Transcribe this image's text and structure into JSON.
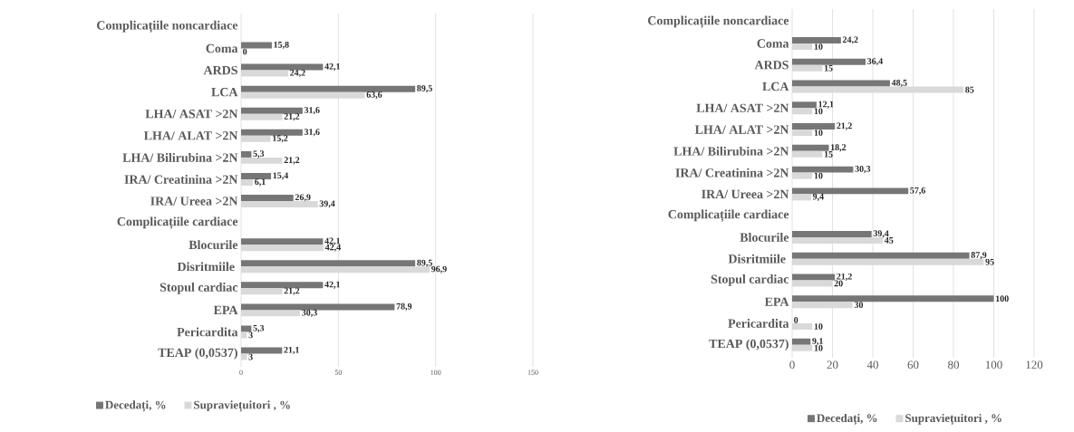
{
  "chart_data": [
    {
      "type": "bar",
      "orientation": "horizontal",
      "categories": [
        "Complicațiile noncardiace",
        "Coma",
        "ARDS",
        "LCA",
        "LHA/ ASAT  >2N",
        "LHA/ ALAT >2N",
        "LHA/ Bilirubina >2N",
        "IRA/ Creatinina >2N",
        "IRA/ Ureea >2N",
        "Complicațiile cardiace",
        "Blocurile",
        "Disritmiile ",
        "Stopul cardiac",
        "EPA",
        "Pericardita",
        "TEAP (0,0537)"
      ],
      "series": [
        {
          "name": "Decedați, %",
          "color": "#767676",
          "values": [
            null,
            15.8,
            42.1,
            89.5,
            31.6,
            31.6,
            5.3,
            15.4,
            26.9,
            null,
            42.1,
            89.5,
            42.1,
            78.9,
            5.3,
            21.1
          ],
          "value_labels": [
            null,
            "15,8",
            "42,1",
            "89,5",
            "31,6",
            "31,6",
            "5,3",
            "15,4",
            "26,9",
            null,
            "42,1",
            "89,5",
            "42,1",
            "78,9",
            "5,3",
            "21,1"
          ]
        },
        {
          "name": "Supraviețuitori , %",
          "color": "#d9d9d9",
          "values": [
            null,
            0,
            24.2,
            63.6,
            21.2,
            15.2,
            21.2,
            6.1,
            39.4,
            null,
            42.4,
            96.9,
            21.2,
            30.3,
            3,
            3
          ],
          "value_labels": [
            null,
            "0",
            "24,2",
            "63,6",
            "21,2",
            "15,2",
            "21,2",
            "6,1",
            "39,4",
            null,
            "42,4",
            "96,9",
            "21,2",
            "30,3",
            "3",
            "3"
          ]
        }
      ],
      "xlim": [
        0,
        150
      ],
      "xticks": [
        0,
        50,
        100,
        150
      ],
      "grid": "x",
      "legend": "bottom"
    },
    {
      "type": "bar",
      "orientation": "horizontal",
      "categories": [
        "Complicațiile noncardiace",
        "Coma",
        "ARDS",
        "LCA",
        "LHA/ ASAT  >2N",
        "LHA/ ALAT >2N",
        "LHA/ Bilirubina >2N",
        "IRA/ Creatinina >2N",
        "IRA/ Ureea >2N",
        "Complicațiile cardiace",
        "Blocurile",
        "Disritmiile ",
        "Stopul cardiac",
        "EPA",
        "Pericardita",
        "TEAP (0,0537)"
      ],
      "series": [
        {
          "name": "Decedați, %",
          "color": "#767676",
          "values": [
            null,
            24.2,
            36.4,
            48.5,
            12.1,
            21.2,
            18.2,
            30.3,
            57.6,
            null,
            39.4,
            87.9,
            21.2,
            100,
            0,
            9.1
          ],
          "value_labels": [
            null,
            "24,2",
            "36,4",
            "48,5",
            "12,1",
            "21,2",
            "18,2",
            "30,3",
            "57,6",
            null,
            "39,4",
            "87,9",
            "21,2",
            "100",
            "0",
            "9,1"
          ]
        },
        {
          "name": "Supraviețuitori , %",
          "color": "#d9d9d9",
          "values": [
            null,
            10,
            15,
            85,
            10,
            10,
            15,
            10,
            9.4,
            null,
            45,
            95,
            20,
            30,
            10,
            10
          ],
          "value_labels": [
            null,
            "10",
            "15",
            "85",
            "10",
            "10",
            "15",
            "10",
            "9,4",
            null,
            "45",
            "95",
            "20",
            "30",
            "10",
            "10"
          ]
        }
      ],
      "xlim": [
        0,
        120
      ],
      "xticks": [
        0,
        20,
        40,
        60,
        80,
        100,
        120
      ],
      "grid": "x",
      "legend": "bottom"
    }
  ]
}
